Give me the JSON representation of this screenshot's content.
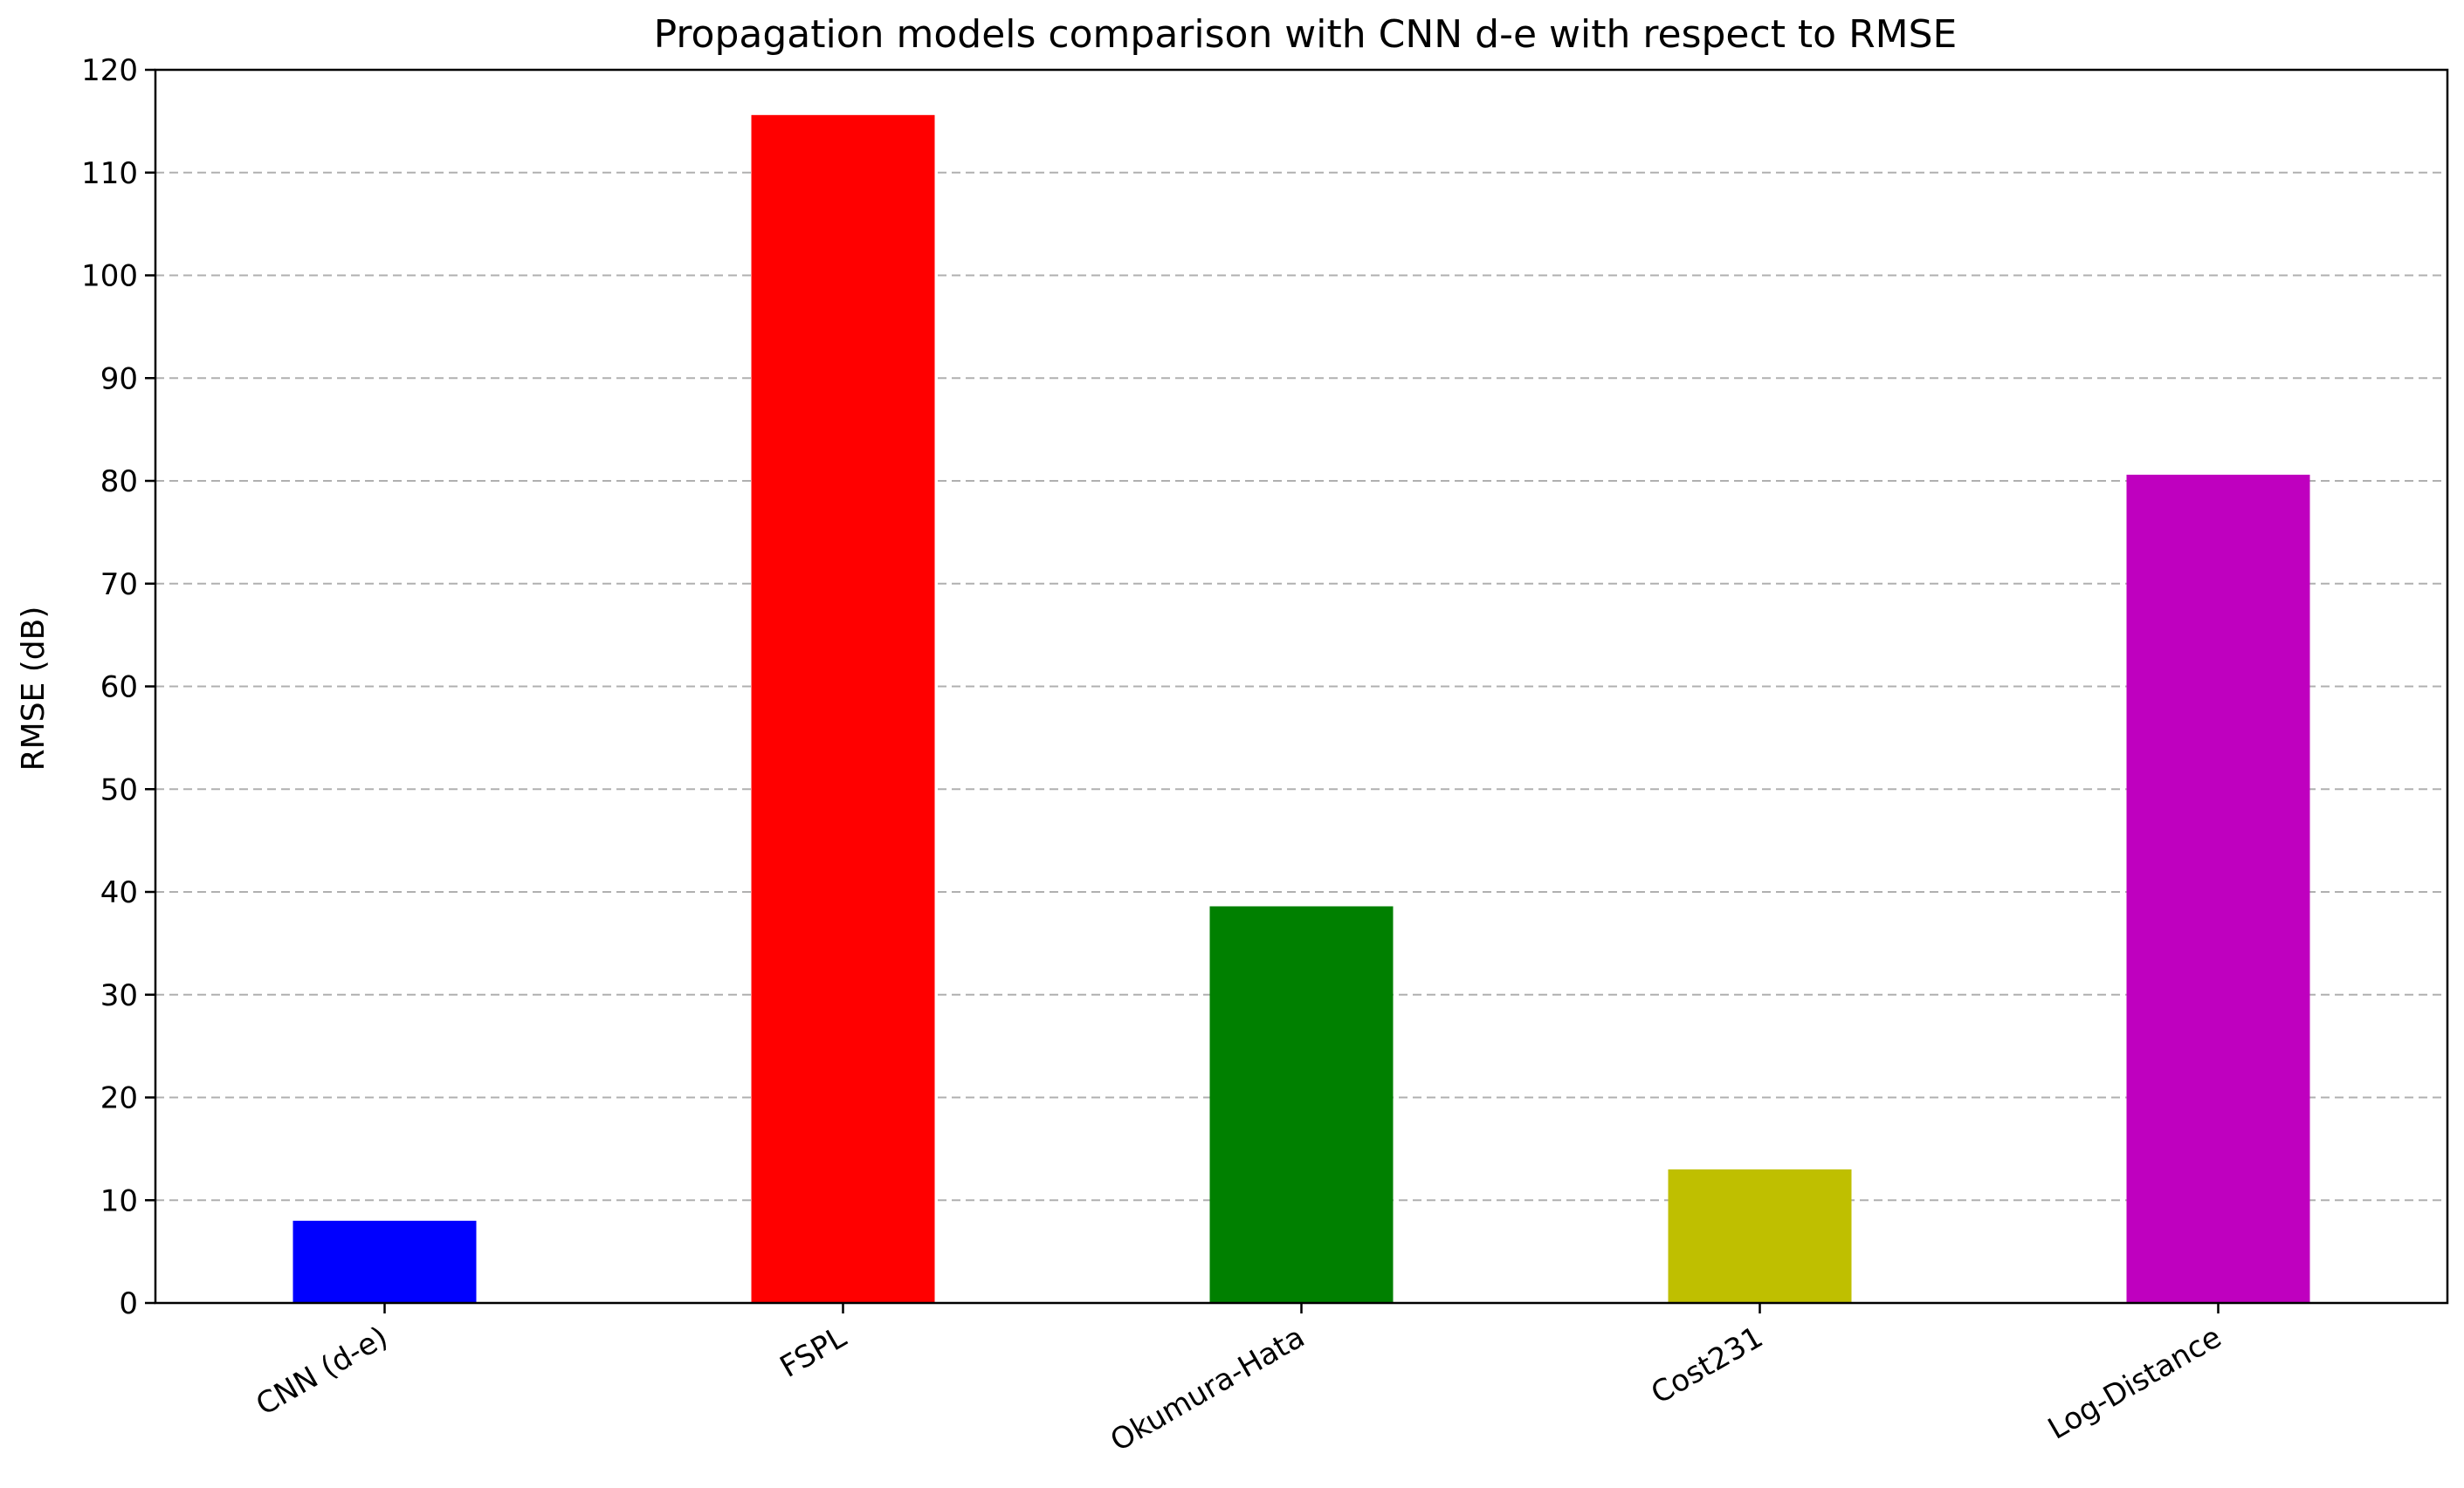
{
  "chart_data": {
    "type": "bar",
    "title": "Propagation models comparison with CNN d-e with respect to RMSE",
    "xlabel": "",
    "ylabel": "RMSE (dB)",
    "categories": [
      "CNN (d-e)",
      "FSPL",
      "Okumura-Hata",
      "Cost231",
      "Log-Distance"
    ],
    "values": [
      8.0,
      115.6,
      38.6,
      13.0,
      80.6
    ],
    "colors": [
      "#0000ff",
      "#ff0000",
      "#008000",
      "#bfbf00",
      "#bf00bf"
    ],
    "ylim": [
      0,
      120
    ],
    "yticks": [
      "0",
      "10",
      "20",
      "30",
      "40",
      "50",
      "60",
      "70",
      "80",
      "90",
      "100",
      "110",
      "120"
    ],
    "grid": "y-dashed",
    "xtick_rotation": "30"
  }
}
